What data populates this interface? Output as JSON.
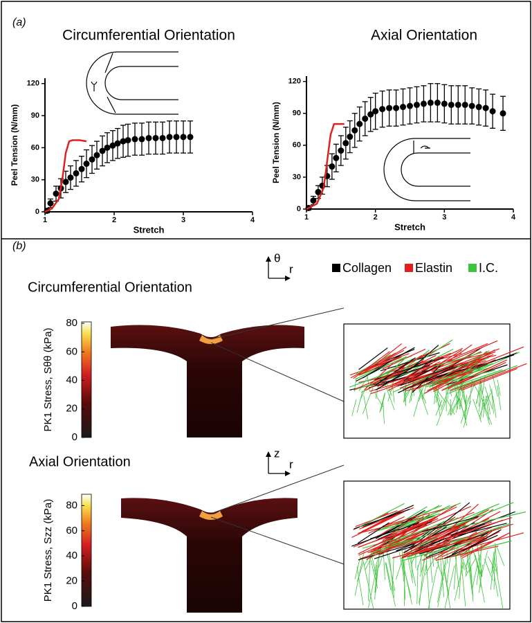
{
  "chart_data": [
    {
      "type": "line",
      "title": "Circumferential Orientation",
      "x_label": "Stretch",
      "y_label": "Peel Tension (N/mm)",
      "xlim": [
        1,
        4
      ],
      "ylim": [
        0,
        125
      ],
      "xticks": [
        1,
        2,
        3,
        4
      ],
      "yticks": [
        0,
        30,
        60,
        90,
        120
      ],
      "series": [
        {
          "color": "#000000",
          "x": [
            1.03,
            1.08,
            1.16,
            1.23,
            1.3,
            1.37,
            1.45,
            1.53,
            1.6,
            1.68,
            1.75,
            1.83,
            1.9,
            1.98,
            2.05,
            2.13,
            2.2,
            2.3,
            2.4,
            2.5,
            2.6,
            2.7,
            2.8,
            2.9,
            3.0,
            3.1
          ],
          "values": [
            1,
            8,
            17,
            22,
            28,
            32,
            36,
            40,
            45,
            49,
            53,
            57,
            60,
            62,
            64,
            66,
            67,
            68,
            68,
            69,
            69,
            69,
            70,
            70,
            70,
            70
          ],
          "errors": [
            2,
            4,
            7,
            9,
            10,
            11,
            12,
            12,
            13,
            13,
            13,
            14,
            14,
            14,
            14,
            15,
            15,
            15,
            15,
            15,
            15,
            15,
            15,
            15,
            15,
            15
          ]
        },
        {
          "color": "#e0201b",
          "x": [
            1.0,
            1.1,
            1.2,
            1.25,
            1.3,
            1.35,
            1.4,
            1.5,
            1.6
          ],
          "values": [
            0,
            3,
            12,
            30,
            55,
            66,
            67,
            67,
            66
          ]
        }
      ]
    },
    {
      "type": "line",
      "title": "Axial Orientation",
      "x_label": "Stretch",
      "y_label": "Peel Tension (N/mm)",
      "xlim": [
        1,
        4
      ],
      "ylim": [
        0,
        125
      ],
      "xticks": [
        1,
        2,
        3,
        4
      ],
      "yticks": [
        0,
        30,
        60,
        90,
        120
      ],
      "series": [
        {
          "color": "#000000",
          "x": [
            1.03,
            1.1,
            1.17,
            1.23,
            1.3,
            1.37,
            1.43,
            1.5,
            1.57,
            1.63,
            1.7,
            1.77,
            1.85,
            1.93,
            2.0,
            2.1,
            2.2,
            2.3,
            2.4,
            2.5,
            2.6,
            2.7,
            2.8,
            2.9,
            3.0,
            3.1,
            3.2,
            3.3,
            3.4,
            3.5,
            3.6,
            3.7,
            3.85
          ],
          "values": [
            1,
            8,
            16,
            22,
            31,
            40,
            48,
            55,
            62,
            68,
            74,
            80,
            85,
            89,
            92,
            94,
            95,
            95,
            96,
            97,
            98,
            99,
            100,
            100,
            99,
            98,
            98,
            98,
            97,
            96,
            95,
            92,
            90
          ],
          "errors": [
            2,
            4,
            6,
            8,
            10,
            12,
            13,
            14,
            15,
            15,
            16,
            16,
            16,
            16,
            17,
            17,
            17,
            17,
            17,
            17,
            17,
            17,
            18,
            18,
            18,
            18,
            18,
            18,
            17,
            17,
            17,
            16,
            16
          ]
        },
        {
          "color": "#e0201b",
          "x": [
            1.0,
            1.15,
            1.25,
            1.3,
            1.35,
            1.4,
            1.45,
            1.55
          ],
          "values": [
            0,
            5,
            20,
            45,
            70,
            80,
            80,
            80
          ]
        }
      ]
    }
  ],
  "panel_labels": [
    "(a)",
    "(b)"
  ],
  "panel_b": {
    "legend": [
      {
        "name": "Collagen",
        "color": "#000000"
      },
      {
        "name": "Elastin",
        "color": "#e0201b"
      },
      {
        "name": "I.C.",
        "color": "#3cc43c"
      }
    ],
    "maps": [
      {
        "title": "Circumferential Orientation",
        "colorbar_label": "PK1 Stress, Sθθ (kPa)",
        "lim": [
          0,
          81
        ],
        "ticks": [
          0,
          20,
          40,
          60,
          80
        ],
        "axes": [
          "θ",
          "r"
        ]
      },
      {
        "title": "Axial Orientation",
        "colorbar_label": "PK1 Stress, Szz (kPa)",
        "lim": [
          0,
          89
        ],
        "ticks": [
          0,
          20,
          40,
          60,
          80
        ],
        "axes": [
          "z",
          "r"
        ]
      }
    ]
  }
}
